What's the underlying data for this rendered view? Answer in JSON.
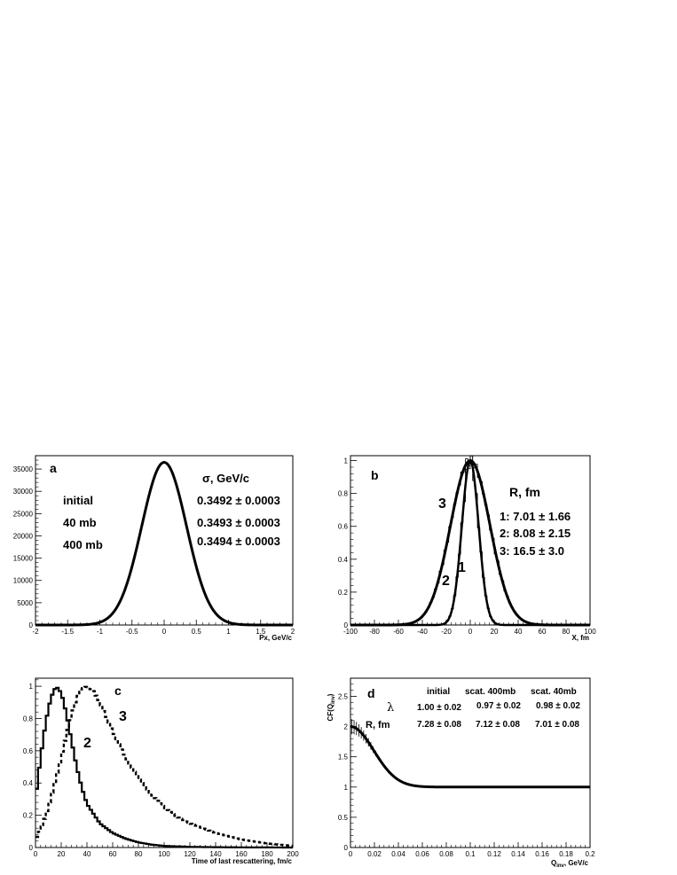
{
  "chart_data": [
    {
      "panel": "a",
      "type": "line",
      "xlabel": "Px, GeV/c",
      "ylabel": "",
      "xlim": [
        -2,
        2
      ],
      "ylim": [
        0,
        38000
      ],
      "xticks": [
        "-2",
        "-1.5",
        "-1",
        "-0.5",
        "0",
        "0.5",
        "1",
        "1.5",
        "2"
      ],
      "yticks": [
        "0",
        "5000",
        "10000",
        "15000",
        "20000",
        "25000",
        "30000",
        "35000"
      ],
      "grid": false,
      "gaussian": {
        "amplitude": 36500,
        "mean": 0,
        "sigma": 0.349
      },
      "legend": {
        "header": "σ, GeV/c",
        "rows": [
          {
            "name": "initial",
            "value": "0.3492 ± 0.0003"
          },
          {
            "name": "40 mb",
            "value": "0.3493 ± 0.0003"
          },
          {
            "name": "400 mb",
            "value": "0.3494 ± 0.0003"
          }
        ]
      }
    },
    {
      "panel": "b",
      "type": "line",
      "xlabel": "X, fm",
      "ylabel": "",
      "xlim": [
        -100,
        100
      ],
      "ylim": [
        0,
        1.03
      ],
      "xticks": [
        "-100",
        "-80",
        "-60",
        "-40",
        "-20",
        "0",
        "20",
        "40",
        "60",
        "80",
        "100"
      ],
      "yticks": [
        "0",
        "0.2",
        "0.4",
        "0.6",
        "0.8",
        "1"
      ],
      "grid": false,
      "curve_labels": [
        "1",
        "2",
        "3"
      ],
      "series": [
        {
          "label": "1",
          "sigma": 7.0,
          "value": "7.01 ± 1.66"
        },
        {
          "label": "2",
          "sigma": 8.1,
          "value": "8.08 ± 2.15"
        },
        {
          "label": "3",
          "sigma": 16.5,
          "value": "16.5 ± 3.0"
        }
      ],
      "legend_header": "R, fm"
    },
    {
      "panel": "c",
      "type": "line",
      "xlabel": "Time of last rescattering, fm/c",
      "ylabel": "",
      "xlim": [
        0,
        200
      ],
      "ylim": [
        0,
        1.05
      ],
      "xticks": [
        "0",
        "20",
        "40",
        "60",
        "80",
        "100",
        "120",
        "140",
        "160",
        "180",
        "200"
      ],
      "yticks": [
        "0",
        "0.2",
        "0.4",
        "0.6",
        "0.8",
        "1"
      ],
      "grid": false,
      "series": [
        {
          "label": "2",
          "style": "solid",
          "x": [
            0,
            4,
            8,
            12,
            16,
            20,
            24,
            28,
            32,
            36,
            40,
            50,
            60,
            70,
            80,
            90,
            100,
            120,
            140,
            160,
            200
          ],
          "y": [
            0.3,
            0.56,
            0.78,
            0.93,
            1.0,
            0.96,
            0.83,
            0.66,
            0.5,
            0.37,
            0.27,
            0.15,
            0.09,
            0.055,
            0.032,
            0.018,
            0.01,
            0.004,
            0.002,
            0.001,
            0.0
          ]
        },
        {
          "label": "3",
          "style": "dashed",
          "x": [
            0,
            5,
            10,
            15,
            20,
            25,
            30,
            35,
            40,
            45,
            50,
            55,
            60,
            70,
            80,
            90,
            100,
            110,
            120,
            140,
            160,
            180,
            200
          ],
          "y": [
            0.05,
            0.13,
            0.25,
            0.4,
            0.56,
            0.73,
            0.88,
            0.98,
            1.0,
            0.97,
            0.9,
            0.81,
            0.72,
            0.56,
            0.43,
            0.33,
            0.25,
            0.19,
            0.15,
            0.09,
            0.05,
            0.025,
            0.01
          ]
        }
      ]
    },
    {
      "panel": "d",
      "type": "line",
      "xlabel": "Q",
      "xlabel_sub": "inv",
      "xlabel_unit": ", GeV/c",
      "ylabel": "CF(Q",
      "ylabel_sub": "inv",
      "ylabel_end": ")",
      "xlim": [
        0,
        0.2
      ],
      "ylim": [
        0,
        2.8
      ],
      "xticks": [
        "0",
        "0.02",
        "0.04",
        "0.06",
        "0.08",
        "0.1",
        "0.12",
        "0.14",
        "0.16",
        "0.18",
        "0.2"
      ],
      "yticks": [
        "0",
        "0.5",
        "1",
        "1.5",
        "2",
        "2.5"
      ],
      "grid": false,
      "fit": {
        "lambda": 1.0,
        "R": 7.2
      },
      "table": {
        "columns": [
          "initial",
          "scat. 400mb",
          "scat. 40mb"
        ],
        "rows": [
          {
            "name": "λ",
            "values": [
              "1.00 ± 0.02",
              "0.97 ± 0.02",
              "0.98 ± 0.02"
            ]
          },
          {
            "name": "R, fm",
            "values": [
              "7.28 ± 0.08",
              "7.12 ± 0.08",
              "7.01 ± 0.08"
            ]
          }
        ]
      }
    }
  ],
  "panel_letters": [
    "a",
    "b",
    "c",
    "d"
  ],
  "colors": {
    "ink": "#000000",
    "frame": "#000000",
    "background": "#ffffff"
  }
}
